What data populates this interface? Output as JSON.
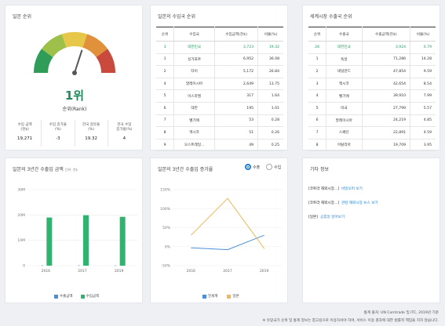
{
  "rank_card": {
    "title": "일본 순위",
    "rank_value": "1위",
    "rank_label": "순위(Rank)",
    "gauge": {
      "level_fraction": 0.6,
      "colors": [
        "#c94a3c",
        "#e1913a",
        "#e7c74a",
        "#9cc04a",
        "#2f9d57"
      ]
    },
    "stats": [
      {
        "label": "수입 금액\n(천$)",
        "value": "19,271"
      },
      {
        "label": "수입 증가율\n(%)",
        "value": "-3"
      },
      {
        "label": "한국 점유율\n(%)",
        "value": "19.32"
      },
      {
        "label": "한국 수입\n증가율(%)",
        "value": "4"
      }
    ]
  },
  "import_table": {
    "title": "일본의 수입국 순위",
    "headers": [
      "순위",
      "수입국",
      "수입금액(천$)",
      "비율(%)"
    ],
    "rows": [
      [
        "3",
        "대한민국",
        "3,723",
        "19.32"
      ],
      [
        "1",
        "싱가포르",
        "6,952",
        "36.08"
      ],
      [
        "2",
        "타이",
        "5,172",
        "26.84"
      ],
      [
        "4",
        "말레이시아",
        "2,649",
        "13.75"
      ],
      [
        "5",
        "이스라엘",
        "317",
        "1.64"
      ],
      [
        "6",
        "대만",
        "195",
        "1.01"
      ],
      [
        "7",
        "벨기에",
        "53",
        "0.28"
      ],
      [
        "8",
        "멕시코",
        "51",
        "0.26"
      ],
      [
        "9",
        "오스트레일...",
        "49",
        "0.25"
      ]
    ],
    "highlight_row": 0
  },
  "export_table": {
    "title": "세계시장 수출국 순위",
    "headers": [
      "순위",
      "수출국",
      "수출금액(천$)",
      "비율(%)"
    ],
    "rows": [
      [
        "26",
        "대한민국",
        "3,924",
        "0.79"
      ],
      [
        "1",
        "독일",
        "71,286",
        "14.28"
      ],
      [
        "2",
        "네덜란드",
        "47,854",
        "9.59"
      ],
      [
        "3",
        "멕시코",
        "42,654",
        "8.54"
      ],
      [
        "4",
        "벨기에",
        "39,910",
        "7.99"
      ],
      [
        "5",
        "미국",
        "27,799",
        "5.57"
      ],
      [
        "6",
        "말레이시아",
        "24,219",
        "4.85"
      ],
      [
        "7",
        "스페인",
        "22,891",
        "4.59"
      ],
      [
        "8",
        "이탈리아",
        "19,709",
        "3.95"
      ]
    ],
    "highlight_row": 0
  },
  "import_chart": {
    "title": "일본의 3년간 수출입 금액",
    "unit": "단위: 천$",
    "chart_data": {
      "type": "bar",
      "categories": [
        "2016",
        "2017",
        "2019"
      ],
      "series": [
        {
          "name": "수출금액",
          "values": [
            100,
            150,
            80
          ],
          "color": "#4a8fd8"
        },
        {
          "name": "수입금액",
          "values": [
            19000,
            19900,
            19271
          ],
          "color": "#2fb46f"
        }
      ],
      "ylim": [
        0,
        30000
      ],
      "ytick_labels": [
        "0",
        "10M",
        "20M",
        "30M"
      ],
      "yticks": [
        0,
        10000,
        20000,
        30000
      ]
    }
  },
  "growth_chart": {
    "title": "일본의 3년간 수출입 증가율",
    "toggle": {
      "export_label": "수출",
      "import_label": "수입",
      "selected": "수출"
    },
    "chart_data": {
      "type": "line",
      "categories": [
        "2016",
        "2017",
        "2019"
      ],
      "series": [
        {
          "name": "전세계",
          "values": [
            -3,
            -8,
            30
          ],
          "color": "#4a8fd8"
        },
        {
          "name": "일본",
          "values": [
            30,
            127,
            -5
          ],
          "color": "#f0b85a"
        }
      ],
      "ylim": [
        -50,
        150
      ],
      "yticks": [
        -50,
        0,
        50,
        100,
        150
      ],
      "ytick_labels": [
        "-50%",
        "0%",
        "50%",
        "100%",
        "150%"
      ]
    }
  },
  "etc": {
    "title": "기타 정보",
    "items": [
      {
        "tag": "[코트라 해외시장...]",
        "link": "바잉오퍼 보기"
      },
      {
        "tag": "[코트라 해외시장...]",
        "link": "관련 해외시장 뉴스 보기"
      },
      {
        "tag": "[일본]",
        "link": "공휴일 알아보기"
      }
    ]
  },
  "footer": {
    "source": "통계 출처: UN Comtrade 및 ITC, 2019년 기준",
    "disclaimer": "※ 유망국가 순위 및 통계 정보는 참고용으로 이용하셔야 하며, 서비스 이용 결과에 대한 법률적 책임을 지지 않습니다."
  }
}
